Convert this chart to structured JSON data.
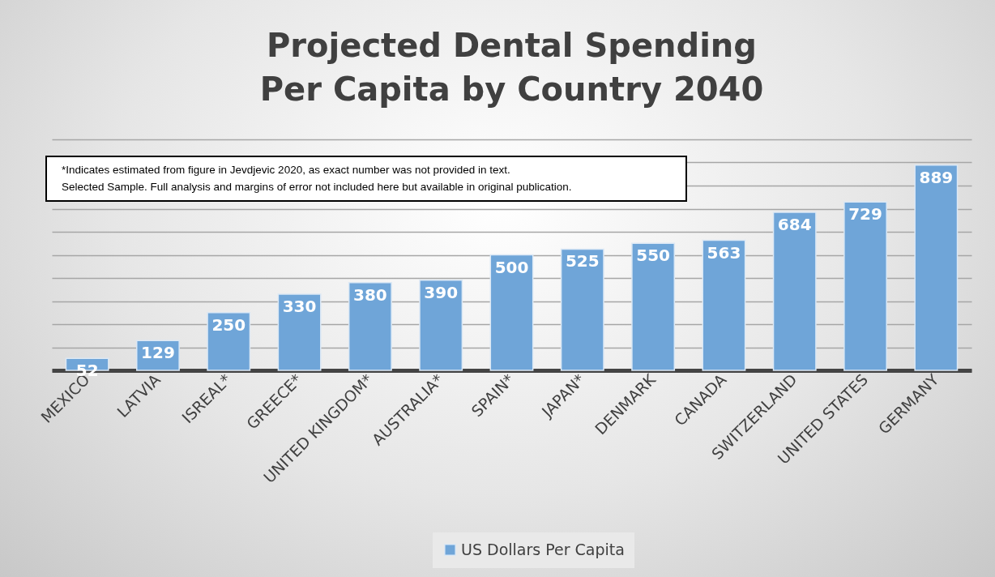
{
  "chart_data": {
    "type": "bar",
    "title": "Projected Dental Spending\nPer Capita by Country 2040",
    "categories": [
      "MEXICO",
      "LATVIA",
      "ISREAL*",
      "GREECE*",
      "UNITED KINGDOM*",
      "AUSTRALIA*",
      "SPAIN*",
      "JAPAN*",
      "DENMARK",
      "CANADA",
      "SWITZERLAND",
      "UNITED STATES",
      "GERMANY"
    ],
    "series": [
      {
        "name": "US Dollars Per Capita",
        "color": "#6fa5d8",
        "values": [
          52,
          129,
          250,
          330,
          380,
          390,
          500,
          525,
          550,
          563,
          684,
          729,
          889
        ]
      }
    ],
    "ylim": [
      0,
      1000
    ],
    "yticks": [
      {
        "value": 0,
        "label": null
      },
      {
        "value": 100,
        "label": null
      },
      {
        "value": 200,
        "label": null
      },
      {
        "value": 300,
        "label": null
      },
      {
        "value": 400,
        "label": null
      },
      {
        "value": 500,
        "label": null
      },
      {
        "value": 600,
        "label": null
      },
      {
        "value": 700,
        "label": null
      },
      {
        "value": 800,
        "label": null
      },
      {
        "value": 900,
        "label": null
      },
      {
        "value": 1000,
        "label": null
      }
    ],
    "annotations": [
      "*Indicates estimated from figure in Jevdjevic 2020, as exact number was not provided in text.",
      "Selected Sample. Full analysis and margins of error not included here but available in original publication."
    ],
    "grid": "y",
    "legend": "bottom",
    "data_labels": true,
    "tick_labels": "x"
  }
}
